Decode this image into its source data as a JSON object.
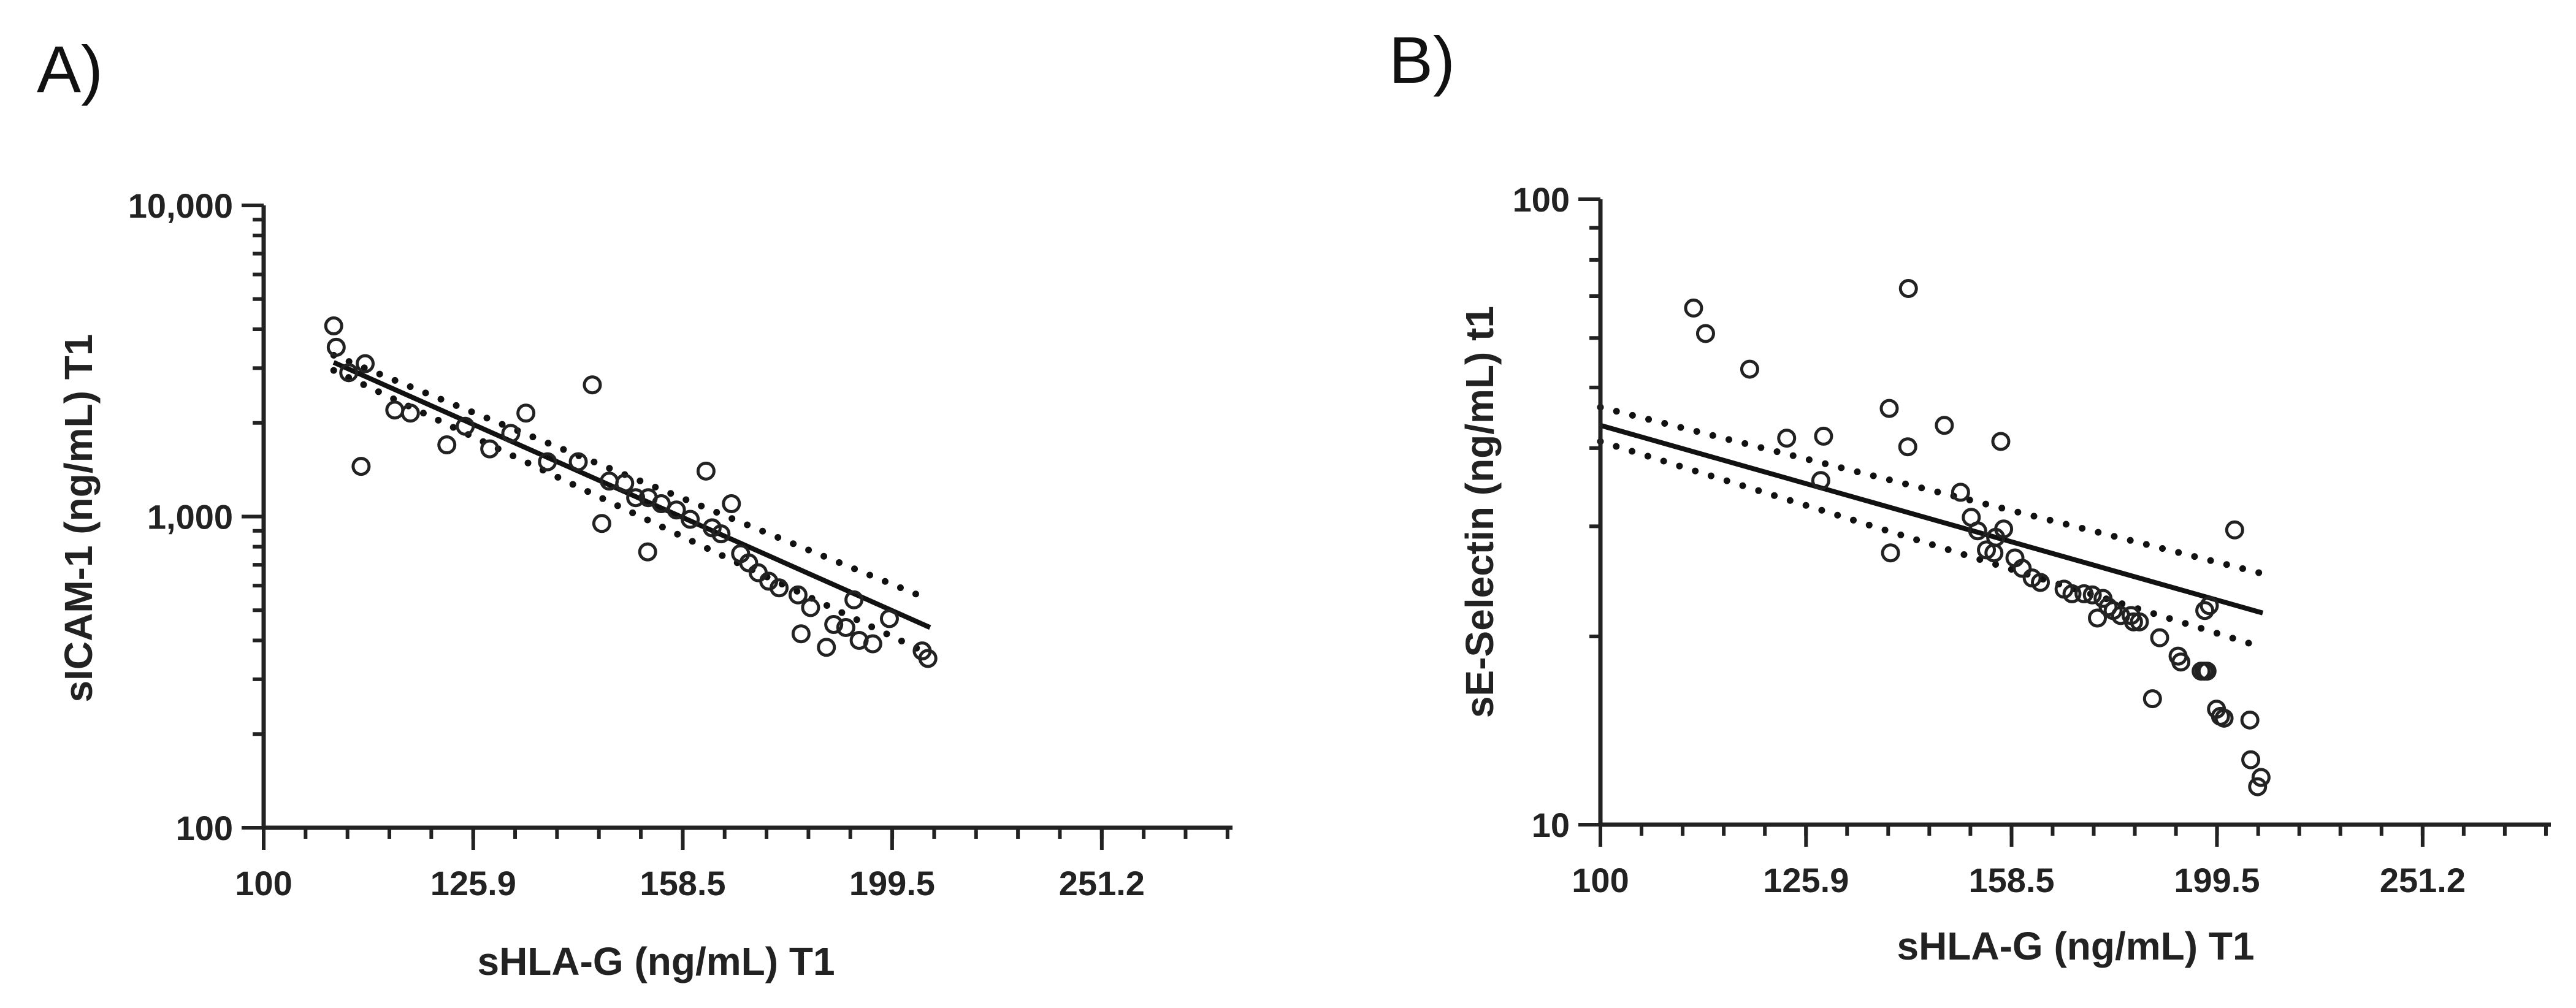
{
  "chart_data": [
    {
      "panel": "A)",
      "type": "scatter",
      "xscale": "log",
      "yscale": "log",
      "xlabel": "sHLA-G (ng/mL) T1",
      "ylabel": "sICAM-1 (ng/mL) T1",
      "xlim": [
        100,
        290
      ],
      "ylim": [
        100,
        10000
      ],
      "xticks": [
        {
          "value": 100,
          "label": "100"
        },
        {
          "value": 125.9,
          "label": "125.9"
        },
        {
          "value": 158.5,
          "label": "158.5"
        },
        {
          "value": 199.5,
          "label": "199.5"
        },
        {
          "value": 251.2,
          "label": "251.2"
        }
      ],
      "yticks": [
        {
          "value": 100,
          "label": "100"
        },
        {
          "value": 1000,
          "label": "1,000"
        },
        {
          "value": 10000,
          "label": "10,000"
        }
      ],
      "fit": {
        "x": [
          108,
          208
        ],
        "y": [
          3130,
          440
        ]
      },
      "ci_upper": {
        "x": [
          108,
          208
        ],
        "y": [
          3300,
          540
        ]
      },
      "ci_lower": {
        "x": [
          108,
          208
        ],
        "y": [
          2950,
          360
        ]
      },
      "points": [
        {
          "x": 108,
          "y": 4100
        },
        {
          "x": 108.3,
          "y": 3500
        },
        {
          "x": 109.8,
          "y": 2900
        },
        {
          "x": 111.8,
          "y": 3100
        },
        {
          "x": 111.3,
          "y": 1450
        },
        {
          "x": 115.5,
          "y": 2200
        },
        {
          "x": 117.5,
          "y": 2150
        },
        {
          "x": 122.3,
          "y": 1700
        },
        {
          "x": 124.8,
          "y": 1950
        },
        {
          "x": 128.2,
          "y": 1650
        },
        {
          "x": 131.2,
          "y": 1850
        },
        {
          "x": 133.4,
          "y": 2150
        },
        {
          "x": 136.6,
          "y": 1500
        },
        {
          "x": 141.3,
          "y": 1500
        },
        {
          "x": 143.5,
          "y": 2650
        },
        {
          "x": 145,
          "y": 950
        },
        {
          "x": 146.2,
          "y": 1300
        },
        {
          "x": 148.7,
          "y": 1280
        },
        {
          "x": 150.5,
          "y": 1150
        },
        {
          "x": 152.5,
          "y": 770
        },
        {
          "x": 152.6,
          "y": 1150
        },
        {
          "x": 154.8,
          "y": 1100
        },
        {
          "x": 157.4,
          "y": 1050
        },
        {
          "x": 159.8,
          "y": 980
        },
        {
          "x": 162.6,
          "y": 1400
        },
        {
          "x": 163.7,
          "y": 920
        },
        {
          "x": 165.3,
          "y": 880
        },
        {
          "x": 167.2,
          "y": 1100
        },
        {
          "x": 168.9,
          "y": 760
        },
        {
          "x": 170.4,
          "y": 710
        },
        {
          "x": 172.2,
          "y": 660
        },
        {
          "x": 174.2,
          "y": 620
        },
        {
          "x": 176.2,
          "y": 590
        },
        {
          "x": 179.9,
          "y": 560
        },
        {
          "x": 182.4,
          "y": 510
        },
        {
          "x": 180.5,
          "y": 420
        },
        {
          "x": 185.6,
          "y": 380
        },
        {
          "x": 187.1,
          "y": 450
        },
        {
          "x": 189.6,
          "y": 440
        },
        {
          "x": 191.3,
          "y": 540
        },
        {
          "x": 192.4,
          "y": 400
        },
        {
          "x": 195.3,
          "y": 390
        },
        {
          "x": 198.9,
          "y": 470
        },
        {
          "x": 206.2,
          "y": 370
        },
        {
          "x": 207.5,
          "y": 350
        }
      ]
    },
    {
      "panel": "B)",
      "type": "scatter",
      "xscale": "log",
      "yscale": "log",
      "xlabel": "sHLA-G (ng/mL) T1",
      "ylabel": "sE-Selectin (ng/mL) t1",
      "xlim": [
        100,
        290
      ],
      "ylim": [
        10,
        100
      ],
      "xticks": [
        {
          "value": 100,
          "label": "100"
        },
        {
          "value": 125.9,
          "label": "125.9"
        },
        {
          "value": 158.5,
          "label": "158.5"
        },
        {
          "value": 199.5,
          "label": "199.5"
        },
        {
          "value": 251.2,
          "label": "251.2"
        }
      ],
      "yticks": [
        {
          "value": 10,
          "label": "10"
        },
        {
          "value": 100,
          "label": "100"
        }
      ],
      "fit": {
        "x": [
          100,
          210
        ],
        "y": [
          43.5,
          21.8
        ]
      },
      "ci_upper": {
        "x": [
          100,
          210
        ],
        "y": [
          46.5,
          25.2
        ]
      },
      "ci_lower": {
        "x": [
          100,
          210
        ],
        "y": [
          41,
          19.2
        ]
      },
      "points": [
        {
          "x": 111,
          "y": 67
        },
        {
          "x": 112.5,
          "y": 61
        },
        {
          "x": 118.2,
          "y": 53.5
        },
        {
          "x": 123.2,
          "y": 41.5
        },
        {
          "x": 128,
          "y": 35.5
        },
        {
          "x": 128.4,
          "y": 41.8
        },
        {
          "x": 138.2,
          "y": 46.3
        },
        {
          "x": 138.4,
          "y": 27.2
        },
        {
          "x": 141.1,
          "y": 40.2
        },
        {
          "x": 141.2,
          "y": 72
        },
        {
          "x": 147,
          "y": 43.5
        },
        {
          "x": 149.7,
          "y": 34
        },
        {
          "x": 151.5,
          "y": 31
        },
        {
          "x": 152.6,
          "y": 29.5
        },
        {
          "x": 154.1,
          "y": 27.5
        },
        {
          "x": 155.4,
          "y": 27.2
        },
        {
          "x": 155.7,
          "y": 28.8
        },
        {
          "x": 156.6,
          "y": 41
        },
        {
          "x": 157.1,
          "y": 29.7
        },
        {
          "x": 159.1,
          "y": 26.7
        },
        {
          "x": 160.4,
          "y": 25.7
        },
        {
          "x": 162.2,
          "y": 24.8
        },
        {
          "x": 163.7,
          "y": 24.4
        },
        {
          "x": 168.1,
          "y": 23.8
        },
        {
          "x": 169.6,
          "y": 23.4
        },
        {
          "x": 171.9,
          "y": 23.4
        },
        {
          "x": 173.5,
          "y": 23.3
        },
        {
          "x": 174.5,
          "y": 21.4
        },
        {
          "x": 175.6,
          "y": 23
        },
        {
          "x": 176.6,
          "y": 22.3
        },
        {
          "x": 177.6,
          "y": 22
        },
        {
          "x": 179.1,
          "y": 21.6
        },
        {
          "x": 181.2,
          "y": 21.6
        },
        {
          "x": 181.7,
          "y": 21.1
        },
        {
          "x": 182.9,
          "y": 21.1
        },
        {
          "x": 185.6,
          "y": 15.9
        },
        {
          "x": 187.1,
          "y": 19.9
        },
        {
          "x": 191,
          "y": 18.6
        },
        {
          "x": 191.6,
          "y": 18.2
        },
        {
          "x": 196,
          "y": 17.6
        },
        {
          "x": 196.7,
          "y": 17.6
        },
        {
          "x": 196.8,
          "y": 22
        },
        {
          "x": 197.8,
          "y": 22.4
        },
        {
          "x": 197.3,
          "y": 17.6
        },
        {
          "x": 199.4,
          "y": 15.3
        },
        {
          "x": 200.3,
          "y": 14.9
        },
        {
          "x": 201.1,
          "y": 14.8
        },
        {
          "x": 203.5,
          "y": 29.6
        },
        {
          "x": 207,
          "y": 14.7
        },
        {
          "x": 207.2,
          "y": 12.7
        },
        {
          "x": 208.8,
          "y": 11.5
        },
        {
          "x": 209.6,
          "y": 11.9
        }
      ]
    }
  ]
}
